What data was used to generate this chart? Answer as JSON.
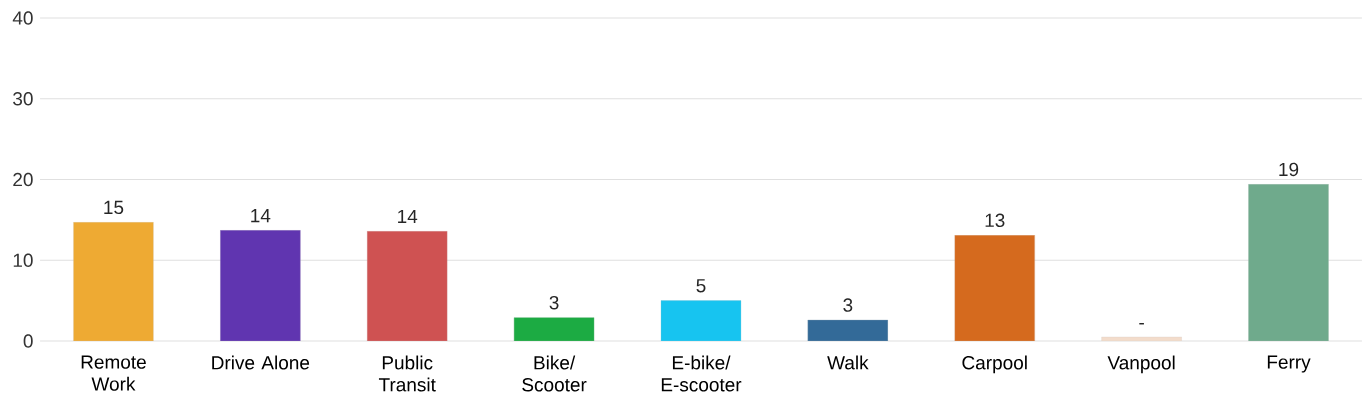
{
  "chart_data": {
    "type": "bar",
    "categories": [
      "Remote Work",
      "Drive Alone",
      "Public Transit",
      "Bike/ Scooter",
      "E-bike/ E-scooter",
      "Walk",
      "Carpool",
      "Vanpool",
      "Ferry"
    ],
    "values": [
      14.7,
      13.7,
      13.6,
      2.9,
      5.0,
      2.6,
      13.1,
      0.5,
      19.4
    ],
    "value_labels": [
      "15",
      "14",
      "14",
      "3",
      "5",
      "3",
      "13",
      "-",
      "19"
    ],
    "colors": [
      "#eeaa33",
      "#6035b0",
      "#cf5252",
      "#1cab43",
      "#17c4f0",
      "#336a98",
      "#d56a1e",
      "#f3dccb",
      "#6faa8c"
    ],
    "ylim": [
      0,
      40
    ],
    "yticks": [
      0,
      10,
      20,
      30,
      40
    ],
    "grid": "y"
  }
}
